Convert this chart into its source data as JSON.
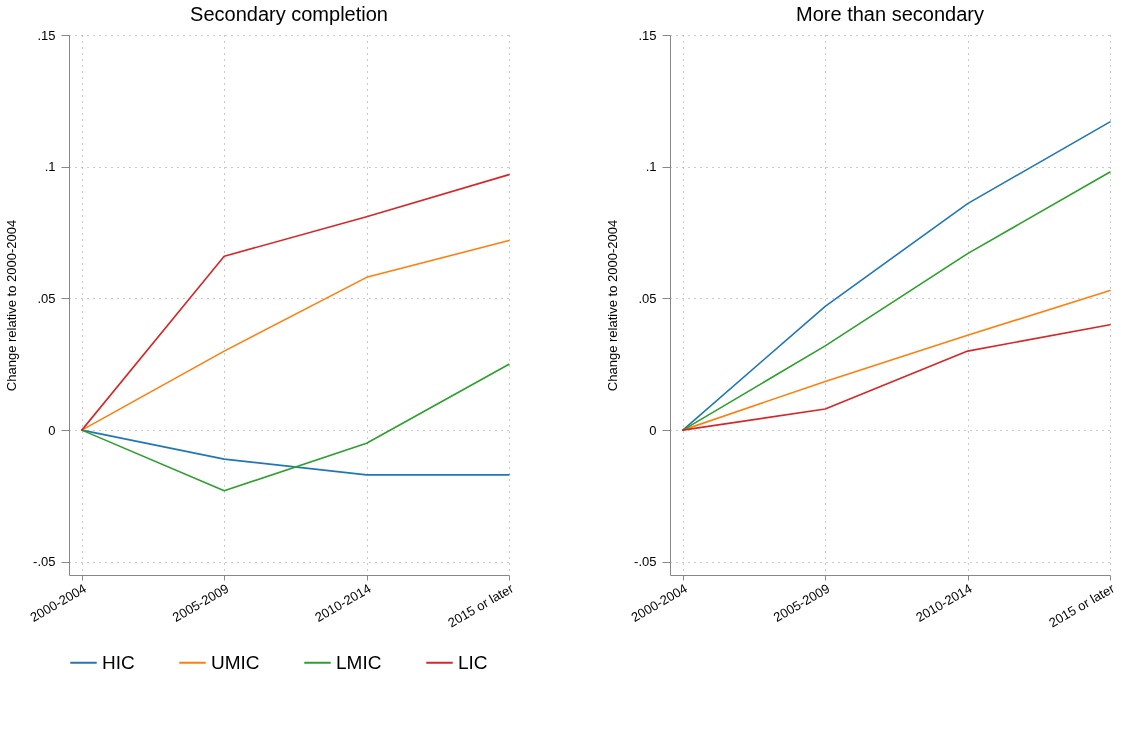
{
  "chart_data": [
    {
      "type": "line",
      "title": "Secondary completion",
      "ylabel": "Change relative to 2000-2004",
      "categories": [
        "2000-2004",
        "2005-2009",
        "2010-2014",
        "2015 or later"
      ],
      "series": [
        {
          "name": "HIC",
          "color": "#1f77b4",
          "values": [
            0,
            -0.011,
            -0.017,
            -0.017
          ]
        },
        {
          "name": "UMIC",
          "color": "#ff7f0e",
          "values": [
            0,
            0.03,
            0.058,
            0.072
          ]
        },
        {
          "name": "LMIC",
          "color": "#2ca02c",
          "values": [
            0,
            -0.023,
            -0.005,
            0.025
          ]
        },
        {
          "name": "LIC",
          "color": "#d62728",
          "values": [
            0,
            0.066,
            0.081,
            0.097
          ]
        }
      ],
      "ylim": [
        -0.055,
        0.15
      ],
      "yticks": [
        {
          "value": -0.05,
          "label": "-.05"
        },
        0,
        {
          "value": 0.05,
          "label": ".05"
        },
        {
          "value": 0.1,
          "label": ".1"
        },
        {
          "value": 0.15,
          "label": ".15"
        }
      ],
      "grid": true,
      "legend": "bottom"
    },
    {
      "type": "line",
      "title": "More than secondary",
      "ylabel": "Change relative to 2000-2004",
      "categories": [
        "2000-2004",
        "2005-2009",
        "2010-2014",
        "2015 or later"
      ],
      "series": [
        {
          "name": "HIC",
          "color": "#1f77b4",
          "values": [
            0,
            0.047,
            0.086,
            0.117
          ]
        },
        {
          "name": "UMIC",
          "color": "#ff7f0e",
          "values": [
            0,
            0.0185,
            0.036,
            0.053
          ]
        },
        {
          "name": "LMIC",
          "color": "#2ca02c",
          "values": [
            0,
            0.032,
            0.067,
            0.098
          ]
        },
        {
          "name": "LIC",
          "color": "#d62728",
          "values": [
            0,
            0.008,
            0.03,
            0.04
          ]
        }
      ],
      "ylim": [
        -0.055,
        0.15
      ],
      "yticks": [
        {
          "value": -0.05,
          "label": "-.05"
        },
        0,
        {
          "value": 0.05,
          "label": ".05"
        },
        {
          "value": 0.1,
          "label": ".1"
        },
        {
          "value": 0.15,
          "label": ".15"
        }
      ],
      "grid": true,
      "legend": "bottom"
    }
  ]
}
